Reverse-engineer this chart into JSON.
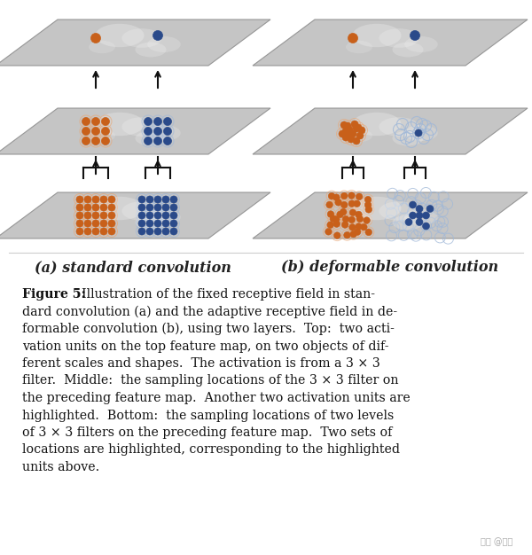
{
  "fig_width": 6.0,
  "fig_height": 6.26,
  "dpi": 100,
  "bg_color": "#ffffff",
  "label_a": "(a) standard convolution",
  "label_b": "(b) deformable convolution",
  "watermark": "知乎 @月棣",
  "caption_fontsize": 10.2,
  "label_fontsize": 11.5,
  "orange_dark": "#c8601a",
  "orange_light": "#e8a878",
  "blue_dark": "#2a4a8a",
  "blue_mid": "#5070b0",
  "blue_light": "#a0b8d8",
  "arrow_color": "#111111",
  "plane_color": "#c0c0c0",
  "plane_edge": "#909090",
  "plane_alpha": 0.92,
  "caption_lines": [
    "Figure 5:  Illustration of the fixed receptive field in stan-",
    "dard convolution (a) and the adaptive receptive field in de-",
    "formable convolution (b), using two layers.  Top:  two acti-",
    "vation units on the top feature map, on two objects of dif-",
    "ferent scales and shapes.  The activation is from a 3 × 3",
    "filter.  Middle:  the sampling locations of the 3 × 3 filter on",
    "the preceding feature map.  Another two activation units are",
    "highlighted.  Bottom:  the sampling locations of two levels",
    "of 3 × 3 filters on the preceding feature map.  Two sets of",
    "locations are highlighted, corresponding to the highlighted",
    "units above."
  ]
}
